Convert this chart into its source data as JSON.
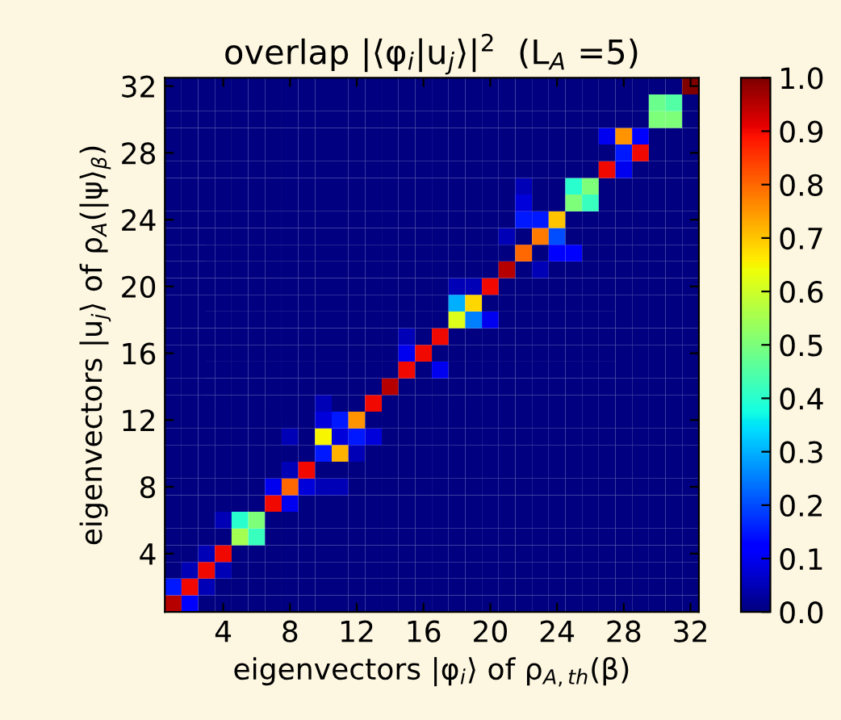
{
  "chart_data": {
    "type": "heatmap",
    "title": "overlap |⟨φ$_{i}$|u$_{j}$⟩|$^{2}$  (L$_{A}$ =5)",
    "xlabel": "eigenvectors |φ$_{i}$⟩ of ρ$_{A,th}$(β)",
    "ylabel": "eigenvectors |u$_{j}$⟩ of ρ$_{A}$(|ψ⟩$_{β}$)",
    "categories": [
      null,
      null,
      null,
      "4",
      null,
      null,
      null,
      "8",
      null,
      null,
      null,
      "12",
      null,
      null,
      null,
      "16",
      null,
      null,
      null,
      "20",
      null,
      null,
      null,
      "24",
      null,
      null,
      null,
      "28",
      null,
      null,
      null,
      "32"
    ],
    "y_categories": [
      "32",
      null,
      null,
      null,
      "28",
      null,
      null,
      null,
      "24",
      null,
      null,
      null,
      "20",
      null,
      null,
      null,
      "16",
      null,
      null,
      null,
      "12",
      null,
      null,
      null,
      "8",
      null,
      null,
      null,
      "4",
      null,
      null,
      null
    ],
    "cells": [
      [
        0,
        0,
        0,
        0,
        0,
        0,
        0,
        0,
        0,
        0,
        0,
        0,
        0,
        0,
        0,
        0,
        0,
        0,
        0,
        0,
        0,
        0,
        0,
        0,
        0,
        0,
        0,
        0,
        0,
        0,
        0,
        1.0
      ],
      [
        0,
        0,
        0,
        0,
        0,
        0,
        0,
        0,
        0,
        0,
        0,
        0,
        0,
        0,
        0,
        0,
        0,
        0,
        0,
        0,
        0,
        0,
        0,
        0,
        0,
        0,
        0,
        0,
        0,
        0.48,
        0.45,
        0
      ],
      [
        0,
        0,
        0,
        0,
        0,
        0,
        0,
        0,
        0,
        0,
        0,
        0,
        0,
        0,
        0,
        0,
        0,
        0,
        0,
        0,
        0,
        0,
        0,
        0,
        0,
        0,
        0,
        0,
        0,
        0.5,
        0.5,
        0
      ],
      [
        0,
        0,
        0,
        0,
        0,
        0,
        0,
        0,
        0,
        0,
        0,
        0,
        0,
        0,
        0,
        0,
        0,
        0,
        0,
        0,
        0,
        0,
        0,
        0,
        0,
        0,
        0.1,
        0.75,
        0.12,
        0,
        0,
        0
      ],
      [
        0,
        0,
        0,
        0,
        0,
        0,
        0,
        0,
        0,
        0,
        0,
        0,
        0,
        0,
        0,
        0,
        0,
        0,
        0,
        0,
        0,
        0,
        0,
        0,
        0,
        0,
        0,
        0.15,
        0.9,
        0,
        0,
        0
      ],
      [
        0,
        0,
        0,
        0,
        0,
        0,
        0,
        0,
        0,
        0,
        0,
        0,
        0,
        0,
        0,
        0,
        0,
        0,
        0,
        0,
        0,
        0,
        0,
        0,
        0,
        0,
        0.9,
        0.1,
        0,
        0,
        0,
        0
      ],
      [
        0,
        0,
        0,
        0,
        0,
        0,
        0,
        0,
        0,
        0,
        0,
        0,
        0,
        0,
        0,
        0,
        0,
        0,
        0,
        0,
        0,
        0.05,
        0,
        0,
        0.4,
        0.5,
        0,
        0,
        0,
        0,
        0,
        0
      ],
      [
        0,
        0,
        0,
        0,
        0,
        0,
        0,
        0,
        0,
        0,
        0,
        0,
        0,
        0,
        0,
        0,
        0,
        0,
        0,
        0,
        0,
        0.08,
        0,
        0,
        0.5,
        0.42,
        0,
        0,
        0,
        0,
        0,
        0
      ],
      [
        0,
        0,
        0,
        0,
        0,
        0,
        0,
        0,
        0,
        0,
        0,
        0,
        0,
        0,
        0,
        0,
        0,
        0,
        0,
        0,
        0,
        0.15,
        0.15,
        0.7,
        0,
        0,
        0,
        0,
        0,
        0,
        0,
        0
      ],
      [
        0,
        0,
        0,
        0,
        0,
        0,
        0,
        0,
        0,
        0,
        0,
        0,
        0,
        0,
        0,
        0,
        0,
        0,
        0,
        0,
        0.05,
        0,
        0.78,
        0.2,
        0,
        0,
        0,
        0,
        0,
        0,
        0,
        0
      ],
      [
        0,
        0,
        0,
        0,
        0,
        0,
        0,
        0,
        0,
        0,
        0,
        0,
        0,
        0,
        0,
        0,
        0,
        0,
        0,
        0,
        0,
        0.8,
        0,
        0.12,
        0.12,
        0,
        0,
        0,
        0,
        0,
        0,
        0
      ],
      [
        0,
        0,
        0,
        0,
        0,
        0,
        0,
        0,
        0,
        0,
        0,
        0,
        0,
        0,
        0,
        0,
        0,
        0,
        0,
        0,
        0.95,
        0,
        0.05,
        0,
        0,
        0,
        0,
        0,
        0,
        0,
        0,
        0
      ],
      [
        0,
        0,
        0,
        0,
        0,
        0,
        0,
        0,
        0,
        0,
        0,
        0,
        0,
        0,
        0,
        0,
        0,
        0.05,
        0.05,
        0.9,
        0,
        0,
        0,
        0,
        0,
        0,
        0,
        0,
        0,
        0,
        0,
        0
      ],
      [
        0,
        0,
        0,
        0,
        0,
        0,
        0,
        0,
        0,
        0,
        0,
        0,
        0,
        0,
        0,
        0,
        0,
        0.3,
        0.68,
        0,
        0,
        0,
        0,
        0,
        0,
        0,
        0,
        0,
        0,
        0,
        0,
        0
      ],
      [
        0,
        0,
        0,
        0,
        0,
        0,
        0,
        0,
        0,
        0,
        0,
        0,
        0,
        0,
        0,
        0,
        0,
        0.62,
        0.25,
        0.1,
        0,
        0,
        0,
        0,
        0,
        0,
        0,
        0,
        0,
        0,
        0,
        0
      ],
      [
        0,
        0,
        0,
        0,
        0,
        0,
        0,
        0,
        0,
        0,
        0,
        0,
        0,
        0,
        0.05,
        0,
        0.9,
        0,
        0,
        0,
        0,
        0,
        0,
        0,
        0,
        0,
        0,
        0,
        0,
        0,
        0,
        0
      ],
      [
        0,
        0,
        0,
        0,
        0,
        0,
        0,
        0,
        0,
        0,
        0,
        0,
        0,
        0,
        0.1,
        0.9,
        0,
        0,
        0,
        0,
        0,
        0,
        0,
        0,
        0,
        0,
        0,
        0,
        0,
        0,
        0,
        0
      ],
      [
        0,
        0,
        0,
        0,
        0,
        0,
        0,
        0,
        0,
        0,
        0,
        0,
        0,
        0,
        0.9,
        0,
        0.1,
        0,
        0,
        0,
        0,
        0,
        0,
        0,
        0,
        0,
        0,
        0,
        0,
        0,
        0,
        0
      ],
      [
        0,
        0,
        0,
        0,
        0,
        0,
        0,
        0,
        0,
        0,
        0,
        0,
        0,
        0.95,
        0,
        0,
        0,
        0,
        0,
        0,
        0,
        0,
        0,
        0,
        0,
        0,
        0,
        0,
        0,
        0,
        0,
        0
      ],
      [
        0,
        0,
        0,
        0,
        0,
        0,
        0,
        0,
        0,
        0.05,
        0,
        0,
        0.9,
        0,
        0,
        0,
        0,
        0,
        0,
        0,
        0,
        0,
        0,
        0,
        0,
        0,
        0,
        0,
        0,
        0,
        0,
        0
      ],
      [
        0,
        0,
        0,
        0,
        0,
        0,
        0,
        0,
        0,
        0.08,
        0.15,
        0.75,
        0,
        0,
        0,
        0,
        0,
        0,
        0,
        0,
        0,
        0,
        0,
        0,
        0,
        0,
        0,
        0,
        0,
        0,
        0,
        0
      ],
      [
        0,
        0,
        0,
        0,
        0,
        0,
        0,
        0.05,
        0,
        0.65,
        0.08,
        0.15,
        0.08,
        0,
        0,
        0,
        0,
        0,
        0,
        0,
        0,
        0,
        0,
        0,
        0,
        0,
        0,
        0,
        0,
        0,
        0,
        0
      ],
      [
        0,
        0,
        0,
        0,
        0,
        0,
        0,
        0,
        0,
        0.15,
        0.72,
        0.05,
        0,
        0,
        0,
        0,
        0,
        0,
        0,
        0,
        0,
        0,
        0,
        0,
        0,
        0,
        0,
        0,
        0,
        0,
        0,
        0
      ],
      [
        0,
        0,
        0,
        0,
        0,
        0,
        0,
        0.05,
        0.9,
        0,
        0,
        0,
        0,
        0,
        0,
        0,
        0,
        0,
        0,
        0,
        0,
        0,
        0,
        0,
        0,
        0,
        0,
        0,
        0,
        0,
        0,
        0
      ],
      [
        0,
        0,
        0,
        0,
        0,
        0,
        0.1,
        0.8,
        0.08,
        0.05,
        0.05,
        0,
        0,
        0,
        0,
        0,
        0,
        0,
        0,
        0,
        0,
        0,
        0,
        0,
        0,
        0,
        0,
        0,
        0,
        0,
        0,
        0
      ],
      [
        0,
        0,
        0,
        0,
        0,
        0,
        0.9,
        0.1,
        0,
        0,
        0,
        0,
        0,
        0,
        0,
        0,
        0,
        0,
        0,
        0,
        0,
        0,
        0,
        0,
        0,
        0,
        0,
        0,
        0,
        0,
        0,
        0
      ],
      [
        0,
        0,
        0,
        0.05,
        0.4,
        0.5,
        0,
        0,
        0,
        0,
        0,
        0,
        0,
        0,
        0,
        0,
        0,
        0,
        0,
        0,
        0,
        0,
        0,
        0,
        0,
        0,
        0,
        0,
        0,
        0,
        0,
        0
      ],
      [
        0,
        0,
        0,
        0,
        0.55,
        0.42,
        0,
        0,
        0,
        0,
        0,
        0,
        0,
        0,
        0,
        0,
        0,
        0,
        0,
        0,
        0,
        0,
        0,
        0,
        0,
        0,
        0,
        0,
        0,
        0,
        0,
        0
      ],
      [
        0,
        0,
        0.05,
        0.9,
        0,
        0,
        0,
        0,
        0,
        0,
        0,
        0,
        0,
        0,
        0,
        0,
        0,
        0,
        0,
        0,
        0,
        0,
        0,
        0,
        0,
        0,
        0,
        0,
        0,
        0,
        0,
        0
      ],
      [
        0,
        0.05,
        0.9,
        0.05,
        0,
        0,
        0,
        0,
        0,
        0,
        0,
        0,
        0,
        0,
        0,
        0,
        0,
        0,
        0,
        0,
        0,
        0,
        0,
        0,
        0,
        0,
        0,
        0,
        0,
        0,
        0,
        0
      ],
      [
        0.15,
        0.9,
        0.05,
        0,
        0,
        0,
        0,
        0,
        0,
        0,
        0,
        0,
        0,
        0,
        0,
        0,
        0,
        0,
        0,
        0,
        0,
        0,
        0,
        0,
        0,
        0,
        0,
        0,
        0,
        0,
        0,
        0
      ],
      [
        0.95,
        0.12,
        0,
        0,
        0,
        0,
        0,
        0,
        0,
        0,
        0,
        0,
        0,
        0,
        0,
        0,
        0,
        0,
        0,
        0,
        0,
        0,
        0,
        0,
        0,
        0,
        0,
        0,
        0,
        0,
        0,
        0
      ]
    ],
    "clim": [
      0,
      1
    ],
    "cticks": [
      {
        "value": 0,
        "label": "0.0"
      },
      {
        "value": 0.1,
        "label": "0.1"
      },
      {
        "value": 0.2,
        "label": "0.2"
      },
      {
        "value": 0.3,
        "label": "0.3"
      },
      {
        "value": 0.4,
        "label": "0.4"
      },
      {
        "value": 0.5,
        "label": "0.5"
      },
      {
        "value": 0.6,
        "label": "0.6"
      },
      {
        "value": 0.7,
        "label": "0.7"
      },
      {
        "value": 0.8,
        "label": "0.8"
      },
      {
        "value": 0.9,
        "label": "0.9"
      },
      {
        "value": 1,
        "label": "1.0"
      }
    ]
  }
}
